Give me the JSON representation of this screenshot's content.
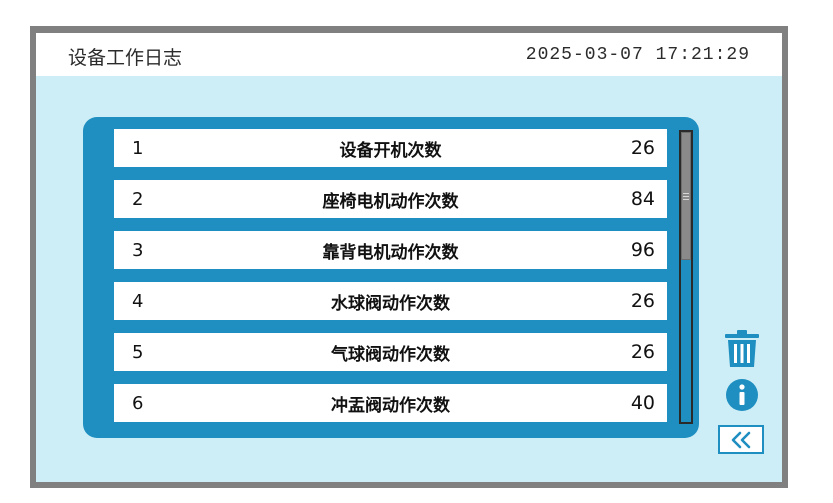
{
  "header": {
    "title": "设备工作日志",
    "datetime": "2025-03-07 17:21:29"
  },
  "log_rows": [
    {
      "index": "1",
      "name": "设备开机次数",
      "count": "26"
    },
    {
      "index": "2",
      "name": "座椅电机动作次数",
      "count": "84"
    },
    {
      "index": "3",
      "name": "靠背电机动作次数",
      "count": "96"
    },
    {
      "index": "4",
      "name": "水球阀动作次数",
      "count": "26"
    },
    {
      "index": "5",
      "name": "气球阀动作次数",
      "count": "26"
    },
    {
      "index": "6",
      "name": "冲盂阀动作次数",
      "count": "40"
    }
  ],
  "scrollbar": {
    "position_fraction": 0.0,
    "visible_fraction": 0.44
  },
  "icons": {
    "delete": "trash-icon",
    "info": "info-icon",
    "back": "double-chevron-left-icon"
  },
  "colors": {
    "accent": "#1E8FC0",
    "background": "#CDEDF7",
    "frame": "#808080"
  }
}
